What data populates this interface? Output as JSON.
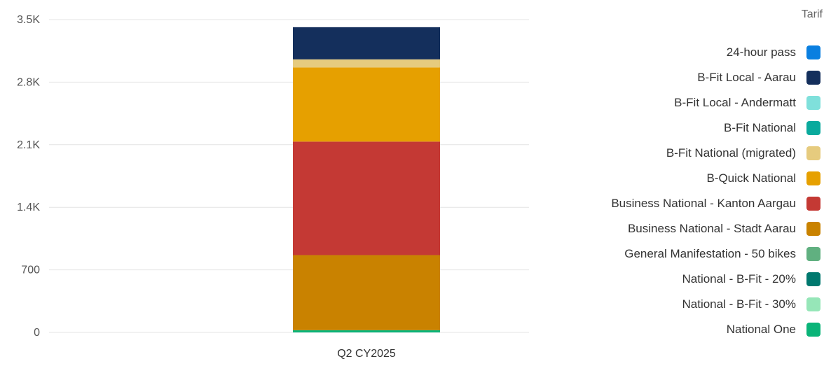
{
  "chart_data": {
    "type": "bar",
    "stacked": true,
    "categories": [
      "Q2 CY2025"
    ],
    "y_ticks": [
      "0",
      "700",
      "1.4K",
      "2.1K",
      "2.8K",
      "3.5K"
    ],
    "y_tick_values": [
      0,
      700,
      1400,
      2100,
      2800,
      3500
    ],
    "ylim": [
      0,
      3500
    ],
    "grid": true,
    "legend_position": "right",
    "legend_title": "Tarif",
    "series": [
      {
        "name": "24-hour pass",
        "color": "#0a7fe0",
        "values": [
          0
        ]
      },
      {
        "name": "B-Fit Local - Aarau",
        "color": "#142f5c",
        "values": [
          360
        ]
      },
      {
        "name": "B-Fit Local - Andermatt",
        "color": "#7fe0db",
        "values": [
          0
        ]
      },
      {
        "name": "B-Fit National",
        "color": "#0aaa9d",
        "values": [
          0
        ]
      },
      {
        "name": "B-Fit National (migrated)",
        "color": "#e6cb7e",
        "values": [
          90
        ]
      },
      {
        "name": "B-Quick National",
        "color": "#e6a000",
        "values": [
          830
        ]
      },
      {
        "name": "Business National - Kanton Aargau",
        "color": "#c43934",
        "values": [
          1270
        ]
      },
      {
        "name": "Business National - Stadt Aarau",
        "color": "#c98200",
        "values": [
          840
        ]
      },
      {
        "name": "General Manifestation - 50 bikes",
        "color": "#60b080",
        "values": [
          0
        ]
      },
      {
        "name": "National - B-Fit - 20%",
        "color": "#00786e",
        "values": [
          0
        ]
      },
      {
        "name": "National - B-Fit - 30%",
        "color": "#96e6b8",
        "values": [
          0
        ]
      },
      {
        "name": "National One",
        "color": "#0ab478",
        "values": [
          25
        ]
      }
    ]
  }
}
